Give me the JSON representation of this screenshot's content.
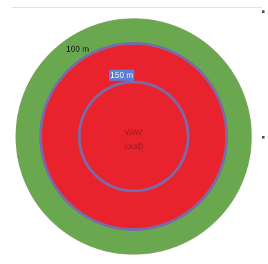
{
  "diagram": {
    "labels": {
      "outer": "100 m",
      "middle": "150 m",
      "center_line1": "WAV",
      "center_line2": "(oud)"
    },
    "colors": {
      "outer_ring": "#6aa84f",
      "middle_zone": "#e8232e",
      "ring_border": "#7a6aa8",
      "label_bg_middle": "#5b7fd6",
      "center_text": "#9b1b1b",
      "outer_text": "#111111",
      "outer_stroke": "#8aa36a"
    }
  }
}
